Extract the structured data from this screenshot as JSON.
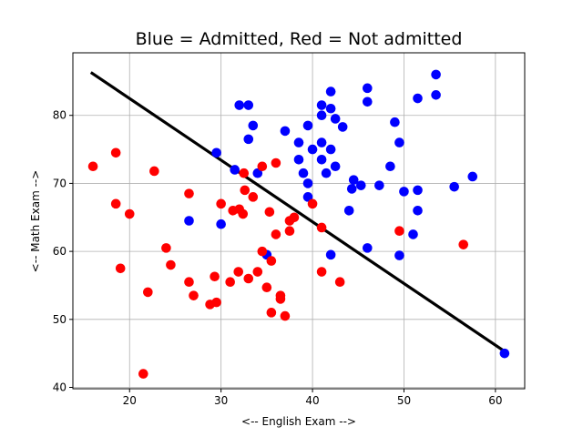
{
  "chart_data": {
    "type": "scatter",
    "title": "Blue = Admitted, Red = Not admitted",
    "xlabel": "<-- English Exam -->",
    "ylabel": "<-- Math Exam -->",
    "xlim": [
      13.8,
      63.2
    ],
    "ylim": [
      39.8,
      89.2
    ],
    "xticks": [
      20,
      30,
      40,
      50,
      60
    ],
    "yticks": [
      40,
      50,
      60,
      70,
      80
    ],
    "grid": true,
    "legend": "none",
    "series": [
      {
        "color": "#0000ff",
        "points": [
          [
            26.5,
            64.5
          ],
          [
            29.5,
            74.5
          ],
          [
            30.0,
            64.0
          ],
          [
            31.5,
            72.0
          ],
          [
            32.0,
            81.5
          ],
          [
            33.0,
            81.5
          ],
          [
            33.0,
            76.5
          ],
          [
            33.5,
            78.5
          ],
          [
            34.0,
            71.5
          ],
          [
            35.0,
            59.5
          ],
          [
            37.0,
            77.7
          ],
          [
            38.5,
            76.0
          ],
          [
            38.5,
            73.5
          ],
          [
            39.0,
            71.5
          ],
          [
            39.5,
            78.5
          ],
          [
            39.5,
            70.0
          ],
          [
            39.5,
            68.0
          ],
          [
            40.0,
            75.0
          ],
          [
            41.0,
            81.5
          ],
          [
            41.0,
            80.0
          ],
          [
            41.0,
            76.0
          ],
          [
            41.0,
            73.5
          ],
          [
            41.5,
            71.5
          ],
          [
            42.0,
            83.5
          ],
          [
            42.0,
            81.0
          ],
          [
            42.0,
            75.0
          ],
          [
            42.0,
            59.5
          ],
          [
            42.5,
            79.5
          ],
          [
            42.5,
            72.5
          ],
          [
            43.3,
            78.3
          ],
          [
            44.0,
            66.0
          ],
          [
            44.5,
            70.5
          ],
          [
            44.3,
            69.2
          ],
          [
            45.3,
            69.7
          ],
          [
            46.0,
            84.0
          ],
          [
            46.0,
            82.0
          ],
          [
            46.0,
            60.5
          ],
          [
            47.3,
            69.7
          ],
          [
            48.5,
            72.5
          ],
          [
            49.0,
            79.0
          ],
          [
            49.5,
            76.0
          ],
          [
            49.5,
            59.4
          ],
          [
            50.0,
            68.8
          ],
          [
            51.0,
            62.5
          ],
          [
            51.5,
            82.5
          ],
          [
            51.5,
            69.0
          ],
          [
            51.5,
            66.0
          ],
          [
            53.5,
            86.0
          ],
          [
            53.5,
            83.0
          ],
          [
            55.5,
            69.5
          ],
          [
            57.5,
            71.0
          ],
          [
            61.0,
            45.0
          ]
        ]
      },
      {
        "color": "#ff0000",
        "points": [
          [
            16.0,
            72.5
          ],
          [
            18.5,
            74.5
          ],
          [
            18.5,
            67.0
          ],
          [
            19.0,
            57.5
          ],
          [
            20.0,
            65.5
          ],
          [
            21.5,
            42.0
          ],
          [
            22.0,
            54.0
          ],
          [
            22.7,
            71.8
          ],
          [
            24.0,
            60.5
          ],
          [
            24.5,
            58.0
          ],
          [
            26.5,
            68.5
          ],
          [
            26.5,
            55.5
          ],
          [
            27.0,
            53.5
          ],
          [
            28.8,
            52.2
          ],
          [
            29.3,
            56.3
          ],
          [
            29.5,
            52.5
          ],
          [
            30.0,
            67.0
          ],
          [
            31.0,
            55.5
          ],
          [
            31.3,
            66.0
          ],
          [
            31.9,
            57.0
          ],
          [
            32.0,
            66.2
          ],
          [
            32.4,
            65.5
          ],
          [
            32.5,
            71.5
          ],
          [
            32.6,
            69.0
          ],
          [
            33.0,
            56.0
          ],
          [
            33.5,
            68.0
          ],
          [
            34.0,
            57.0
          ],
          [
            34.5,
            72.5
          ],
          [
            34.5,
            60.0
          ],
          [
            35.0,
            54.7
          ],
          [
            35.3,
            65.8
          ],
          [
            35.5,
            58.6
          ],
          [
            35.5,
            51.0
          ],
          [
            36.0,
            73.0
          ],
          [
            36.0,
            62.5
          ],
          [
            36.5,
            53.5
          ],
          [
            36.5,
            53.0
          ],
          [
            37.0,
            50.5
          ],
          [
            37.5,
            64.5
          ],
          [
            37.5,
            63.0
          ],
          [
            38.0,
            65.0
          ],
          [
            40.0,
            67.0
          ],
          [
            41.0,
            63.5
          ],
          [
            41.0,
            57.0
          ],
          [
            43.0,
            55.5
          ],
          [
            49.5,
            63.0
          ],
          [
            56.5,
            61.0
          ]
        ]
      }
    ],
    "decision_line": {
      "color": "#000000",
      "points": [
        [
          15.9,
          86.2
        ],
        [
          61.0,
          45.3
        ]
      ]
    }
  }
}
